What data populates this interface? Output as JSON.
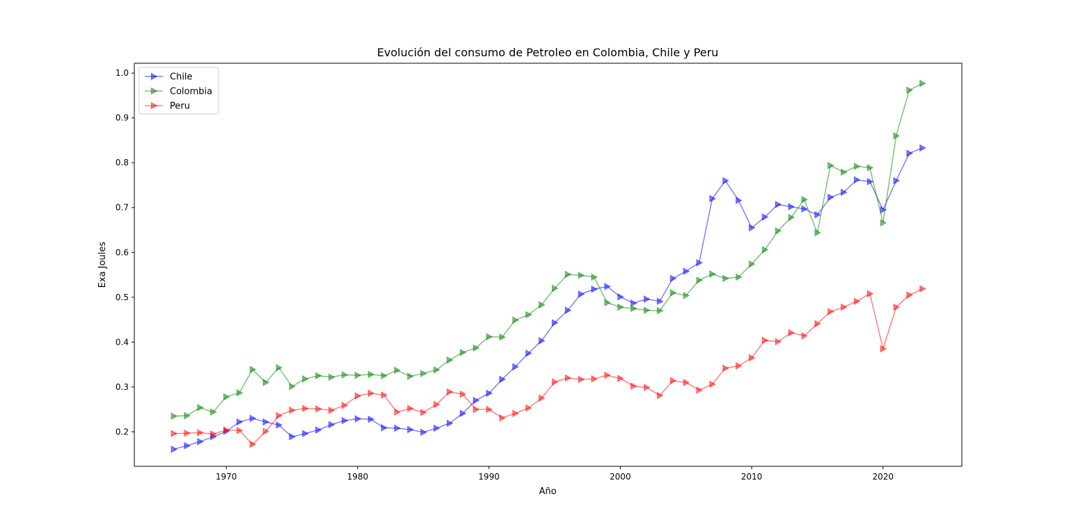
{
  "chart_data": {
    "type": "line",
    "title": "Evolución del consumo de Petroleo en Colombia, Chile y Peru",
    "xlabel": "Año",
    "ylabel": "Exa Joules",
    "xlim": [
      1963,
      2026
    ],
    "ylim": [
      0.123,
      1.022
    ],
    "x_ticks": [
      1970,
      1980,
      1990,
      2000,
      2010,
      2020
    ],
    "x_tick_labels": [
      "1970",
      "1980",
      "1990",
      "2000",
      "2010",
      "2020"
    ],
    "y_ticks": [
      0.2,
      0.3,
      0.4,
      0.5,
      0.6,
      0.7,
      0.8,
      0.9,
      1.0
    ],
    "y_tick_labels": [
      "0.2",
      "0.3",
      "0.4",
      "0.5",
      "0.6",
      "0.7",
      "0.8",
      "0.9",
      "1.0"
    ],
    "grid": false,
    "legend_position": "top-left",
    "marker": "triangle-right",
    "x": [
      1966,
      1967,
      1968,
      1969,
      1970,
      1971,
      1972,
      1973,
      1974,
      1975,
      1976,
      1977,
      1978,
      1979,
      1980,
      1981,
      1982,
      1983,
      1984,
      1985,
      1986,
      1987,
      1988,
      1989,
      1990,
      1991,
      1992,
      1993,
      1994,
      1995,
      1996,
      1997,
      1998,
      1999,
      2000,
      2001,
      2002,
      2003,
      2004,
      2005,
      2006,
      2007,
      2008,
      2009,
      2010,
      2011,
      2012,
      2013,
      2014,
      2015,
      2016,
      2017,
      2018,
      2019,
      2020,
      2021,
      2022,
      2023
    ],
    "series": [
      {
        "name": "Chile",
        "color": "#0000ff",
        "values": [
          0.161,
          0.169,
          0.178,
          0.189,
          0.201,
          0.222,
          0.23,
          0.222,
          0.215,
          0.189,
          0.196,
          0.204,
          0.216,
          0.225,
          0.229,
          0.228,
          0.209,
          0.208,
          0.205,
          0.199,
          0.208,
          0.219,
          0.241,
          0.27,
          0.286,
          0.317,
          0.345,
          0.375,
          0.403,
          0.443,
          0.471,
          0.507,
          0.518,
          0.524,
          0.501,
          0.487,
          0.496,
          0.491,
          0.542,
          0.558,
          0.577,
          0.72,
          0.76,
          0.716,
          0.655,
          0.679,
          0.707,
          0.702,
          0.697,
          0.684,
          0.723,
          0.734,
          0.762,
          0.758,
          0.695,
          0.76,
          0.821,
          0.833
        ]
      },
      {
        "name": "Colombia",
        "color": "#008000",
        "values": [
          0.235,
          0.236,
          0.254,
          0.244,
          0.278,
          0.287,
          0.339,
          0.31,
          0.343,
          0.301,
          0.318,
          0.325,
          0.322,
          0.327,
          0.326,
          0.328,
          0.325,
          0.337,
          0.324,
          0.33,
          0.338,
          0.36,
          0.377,
          0.387,
          0.412,
          0.411,
          0.449,
          0.461,
          0.483,
          0.52,
          0.551,
          0.549,
          0.545,
          0.488,
          0.478,
          0.475,
          0.471,
          0.47,
          0.51,
          0.504,
          0.538,
          0.552,
          0.542,
          0.545,
          0.574,
          0.606,
          0.648,
          0.678,
          0.718,
          0.644,
          0.794,
          0.779,
          0.792,
          0.789,
          0.666,
          0.86,
          0.962,
          0.977
        ]
      },
      {
        "name": "Peru",
        "color": "#ff0000",
        "values": [
          0.196,
          0.197,
          0.198,
          0.195,
          0.204,
          0.203,
          0.172,
          0.201,
          0.236,
          0.248,
          0.252,
          0.251,
          0.248,
          0.259,
          0.28,
          0.286,
          0.282,
          0.244,
          0.252,
          0.243,
          0.261,
          0.289,
          0.284,
          0.25,
          0.25,
          0.231,
          0.241,
          0.253,
          0.275,
          0.311,
          0.32,
          0.317,
          0.318,
          0.326,
          0.319,
          0.302,
          0.299,
          0.281,
          0.314,
          0.31,
          0.293,
          0.306,
          0.342,
          0.347,
          0.365,
          0.404,
          0.401,
          0.421,
          0.414,
          0.441,
          0.468,
          0.478,
          0.491,
          0.508,
          0.385,
          0.478,
          0.505,
          0.519
        ]
      }
    ]
  }
}
